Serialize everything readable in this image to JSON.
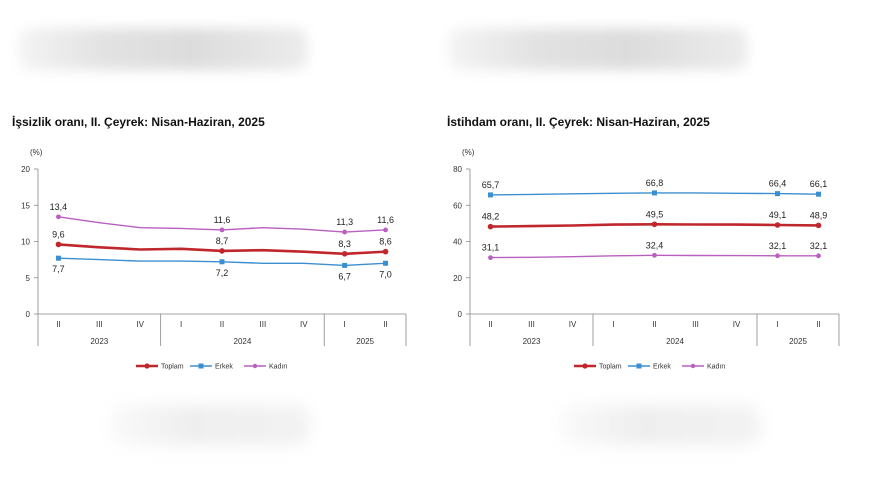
{
  "charts": [
    {
      "id": "left",
      "title": "İşsizlik oranı, II. Çeyrek: Nisan-Haziran, 2025",
      "unit": "(%)",
      "chart_data": {
        "type": "line",
        "title": "İşsizlik oranı, II. Çeyrek: Nisan-Haziran, 2025",
        "ylabel": "(%)",
        "ylim": [
          0,
          20
        ],
        "yticks": [
          0,
          5,
          10,
          15,
          20
        ],
        "grid": false,
        "legend": "bottom",
        "categories": [
          "II",
          "III",
          "IV",
          "I",
          "II",
          "III",
          "IV",
          "I",
          "II"
        ],
        "years": [
          {
            "label": "2023",
            "span": 3
          },
          {
            "label": "2024",
            "span": 4
          },
          {
            "label": "2025",
            "span": 2
          }
        ],
        "series": [
          {
            "name": "Toplam",
            "color": "#c0272d",
            "values": [
              9.6,
              9.2,
              8.9,
              9.0,
              8.7,
              8.8,
              8.6,
              8.3,
              8.6
            ],
            "labels": [
              "9,6",
              "",
              "",
              "",
              "8,7",
              "",
              "",
              "8,3",
              "8,6"
            ]
          },
          {
            "name": "Erkek",
            "color": "#3b8fd0",
            "values": [
              7.7,
              7.5,
              7.3,
              7.3,
              7.2,
              7.0,
              7.0,
              6.7,
              7.0
            ],
            "labels": [
              "7,7",
              "",
              "",
              "",
              "7,2",
              "",
              "",
              "6,7",
              "7,0"
            ]
          },
          {
            "name": "Kadın",
            "color": "#b95fc0",
            "values": [
              13.4,
              12.6,
              11.9,
              11.8,
              11.6,
              11.9,
              11.7,
              11.3,
              11.6
            ],
            "labels": [
              "13,4",
              "",
              "",
              "",
              "11,6",
              "",
              "",
              "11,3",
              "11,6"
            ]
          }
        ]
      }
    },
    {
      "id": "right",
      "title": "İstihdam oranı, II. Çeyrek: Nisan-Haziran, 2025",
      "unit": "(%)",
      "chart_data": {
        "type": "line",
        "title": "İstihdam oranı, II. Çeyrek: Nisan-Haziran, 2025",
        "ylabel": "(%)",
        "ylim": [
          0,
          80
        ],
        "yticks": [
          0,
          20,
          40,
          60,
          80
        ],
        "grid": false,
        "legend": "bottom",
        "categories": [
          "II",
          "III",
          "IV",
          "I",
          "II",
          "III",
          "IV",
          "I",
          "II"
        ],
        "years": [
          {
            "label": "2023",
            "span": 3
          },
          {
            "label": "2024",
            "span": 4
          },
          {
            "label": "2025",
            "span": 2
          }
        ],
        "series": [
          {
            "name": "Toplam",
            "color": "#c0272d",
            "values": [
              48.2,
              48.5,
              48.8,
              49.3,
              49.5,
              49.4,
              49.3,
              49.1,
              48.9
            ],
            "labels": [
              "48,2",
              "",
              "",
              "",
              "49,5",
              "",
              "",
              "49,1",
              "48,9"
            ]
          },
          {
            "name": "Erkek",
            "color": "#3b8fd0",
            "values": [
              65.7,
              66.0,
              66.3,
              66.6,
              66.8,
              66.8,
              66.6,
              66.4,
              66.1
            ],
            "labels": [
              "65,7",
              "",
              "",
              "",
              "66,8",
              "",
              "",
              "66,4",
              "66,1"
            ]
          },
          {
            "name": "Kadın",
            "color": "#b95fc0",
            "values": [
              31.1,
              31.3,
              31.6,
              32.1,
              32.4,
              32.3,
              32.2,
              32.1,
              32.1
            ],
            "labels": [
              "31,1",
              "",
              "",
              "",
              "32,4",
              "",
              "",
              "32,1",
              "32,1"
            ]
          }
        ]
      }
    }
  ]
}
